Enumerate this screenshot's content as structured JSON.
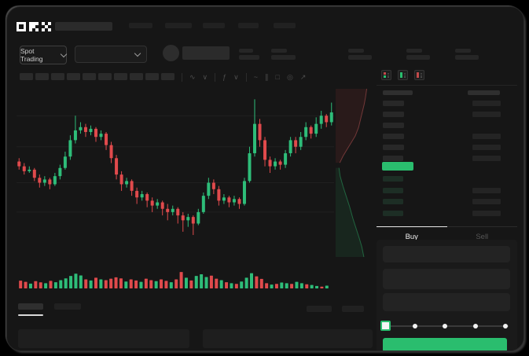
{
  "app": {
    "name": "OKX"
  },
  "colors": {
    "up": "#2ebd79",
    "down": "#e04a4c",
    "buy_button": "#2abd6e",
    "last_price_bg": "#2abd6e",
    "grid": "#202020"
  },
  "header": {
    "market_selector_label": "Spot Trading",
    "nav_placeholder_count": 5,
    "stat_placeholder_count": 5
  },
  "toolbar": {
    "timeframe_placeholder_count": 10,
    "tool_icons": [
      {
        "id": "wave",
        "glyph": "∿"
      },
      {
        "id": "chevron",
        "glyph": "∨"
      },
      {
        "id": "function",
        "glyph": "ƒ"
      },
      {
        "id": "chevron-small",
        "glyph": "∨"
      },
      {
        "id": "trendline",
        "glyph": "~"
      },
      {
        "id": "draw",
        "glyph": "∥"
      },
      {
        "id": "snapshot",
        "glyph": "□"
      },
      {
        "id": "settings",
        "glyph": "◎"
      },
      {
        "id": "expand",
        "glyph": "↗"
      }
    ]
  },
  "chart_data": {
    "type": "candlestick",
    "price_scale": [
      0,
      100
    ],
    "gridlines": [
      85,
      66,
      44,
      26
    ],
    "candles": [
      [
        57,
        54,
        52,
        59
      ],
      [
        54,
        51,
        49,
        56
      ],
      [
        51,
        52,
        50,
        54
      ],
      [
        52,
        47,
        45,
        53
      ],
      [
        47,
        44,
        41,
        49
      ],
      [
        44,
        46,
        42,
        48
      ],
      [
        46,
        43,
        40,
        47
      ],
      [
        43,
        48,
        42,
        50
      ],
      [
        48,
        53,
        46,
        55
      ],
      [
        53,
        60,
        52,
        63
      ],
      [
        60,
        70,
        58,
        73
      ],
      [
        70,
        76,
        68,
        85
      ],
      [
        76,
        78,
        74,
        81
      ],
      [
        78,
        75,
        72,
        80
      ],
      [
        75,
        77,
        73,
        79
      ],
      [
        77,
        72,
        69,
        78
      ],
      [
        72,
        74,
        70,
        76
      ],
      [
        74,
        67,
        64,
        75
      ],
      [
        67,
        59,
        56,
        69
      ],
      [
        59,
        49,
        46,
        61
      ],
      [
        49,
        43,
        39,
        51
      ],
      [
        43,
        45,
        41,
        47
      ],
      [
        45,
        39,
        36,
        46
      ],
      [
        39,
        35,
        31,
        41
      ],
      [
        35,
        37,
        33,
        39
      ],
      [
        37,
        33,
        29,
        38
      ],
      [
        33,
        30,
        26,
        35
      ],
      [
        30,
        32,
        28,
        34
      ],
      [
        32,
        28,
        24,
        33
      ],
      [
        28,
        26,
        21,
        31
      ],
      [
        26,
        28,
        24,
        30
      ],
      [
        28,
        24,
        19,
        29
      ],
      [
        24,
        21,
        14,
        26
      ],
      [
        21,
        23,
        17,
        25
      ],
      [
        23,
        19,
        12,
        24
      ],
      [
        19,
        26,
        18,
        28
      ],
      [
        26,
        36,
        25,
        38
      ],
      [
        36,
        44,
        34,
        47
      ],
      [
        44,
        40,
        37,
        46
      ],
      [
        40,
        33,
        30,
        42
      ],
      [
        33,
        35,
        31,
        37
      ],
      [
        35,
        32,
        29,
        36
      ],
      [
        32,
        34,
        30,
        36
      ],
      [
        34,
        31,
        28,
        35
      ],
      [
        31,
        45,
        30,
        47
      ],
      [
        45,
        62,
        44,
        66
      ],
      [
        62,
        80,
        60,
        95
      ],
      [
        80,
        70,
        66,
        83
      ],
      [
        70,
        58,
        54,
        72
      ],
      [
        58,
        54,
        50,
        60
      ],
      [
        54,
        57,
        52,
        59
      ],
      [
        57,
        55,
        52,
        58
      ],
      [
        55,
        62,
        53,
        64
      ],
      [
        62,
        70,
        60,
        72
      ],
      [
        70,
        66,
        62,
        72
      ],
      [
        66,
        72,
        64,
        75
      ],
      [
        72,
        78,
        70,
        81
      ],
      [
        78,
        74,
        71,
        79
      ],
      [
        74,
        80,
        72,
        84
      ],
      [
        80,
        85,
        77,
        88
      ],
      [
        85,
        81,
        78,
        86
      ],
      [
        81,
        87,
        79,
        93
      ]
    ],
    "volumes": [
      45,
      38,
      28,
      42,
      35,
      30,
      44,
      36,
      48,
      58,
      72,
      85,
      75,
      52,
      46,
      62,
      52,
      48,
      56,
      64,
      58,
      40,
      52,
      46,
      38,
      56,
      48,
      42,
      52,
      44,
      36,
      52,
      95,
      62,
      46,
      72,
      82,
      66,
      74,
      56,
      48,
      36,
      30,
      26,
      40,
      62,
      88,
      70,
      55,
      30,
      22,
      26,
      34,
      30,
      26,
      38,
      30,
      24,
      20,
      14,
      10,
      16
    ],
    "depth": {
      "asks_curve": [
        [
          78,
          0
        ],
        [
          75,
          5
        ],
        [
          72,
          9
        ],
        [
          68,
          13
        ],
        [
          63,
          18
        ],
        [
          58,
          23
        ],
        [
          50,
          28
        ],
        [
          40,
          32
        ],
        [
          30,
          36
        ],
        [
          20,
          40
        ],
        [
          12,
          44
        ]
      ],
      "bids_curve": [
        [
          10,
          47
        ],
        [
          13,
          52
        ],
        [
          20,
          58
        ],
        [
          28,
          64
        ],
        [
          36,
          70
        ],
        [
          44,
          77
        ],
        [
          52,
          83
        ],
        [
          60,
          89
        ],
        [
          66,
          94
        ],
        [
          71,
          100
        ]
      ]
    }
  },
  "order_book": {
    "view_modes": [
      "split-view",
      "bids-view",
      "asks-view"
    ],
    "asks": [
      {
        "price_w": 27,
        "amount_w": 36
      },
      {
        "price_w": 27,
        "amount_w": 36
      },
      {
        "price_w": 27,
        "amount_w": 0
      },
      {
        "price_w": 27,
        "amount_w": 36
      },
      {
        "price_w": 27,
        "amount_w": 36
      },
      {
        "price_w": 26,
        "amount_w": 36
      }
    ],
    "bids": [
      {
        "price_w": 26,
        "amount_w": 0
      },
      {
        "price_w": 26,
        "amount_w": 36
      },
      {
        "price_w": 26,
        "amount_w": 36
      },
      {
        "price_w": 26,
        "amount_w": 36
      }
    ],
    "last_price_direction": "up"
  },
  "trade_panel": {
    "tabs": [
      {
        "label": "Buy",
        "active": true
      },
      {
        "label": "Sell",
        "active": false
      }
    ],
    "amount_slider": {
      "ticks": [
        0,
        25,
        50,
        75,
        100
      ],
      "active_tick": 0
    },
    "field_count": 3
  }
}
